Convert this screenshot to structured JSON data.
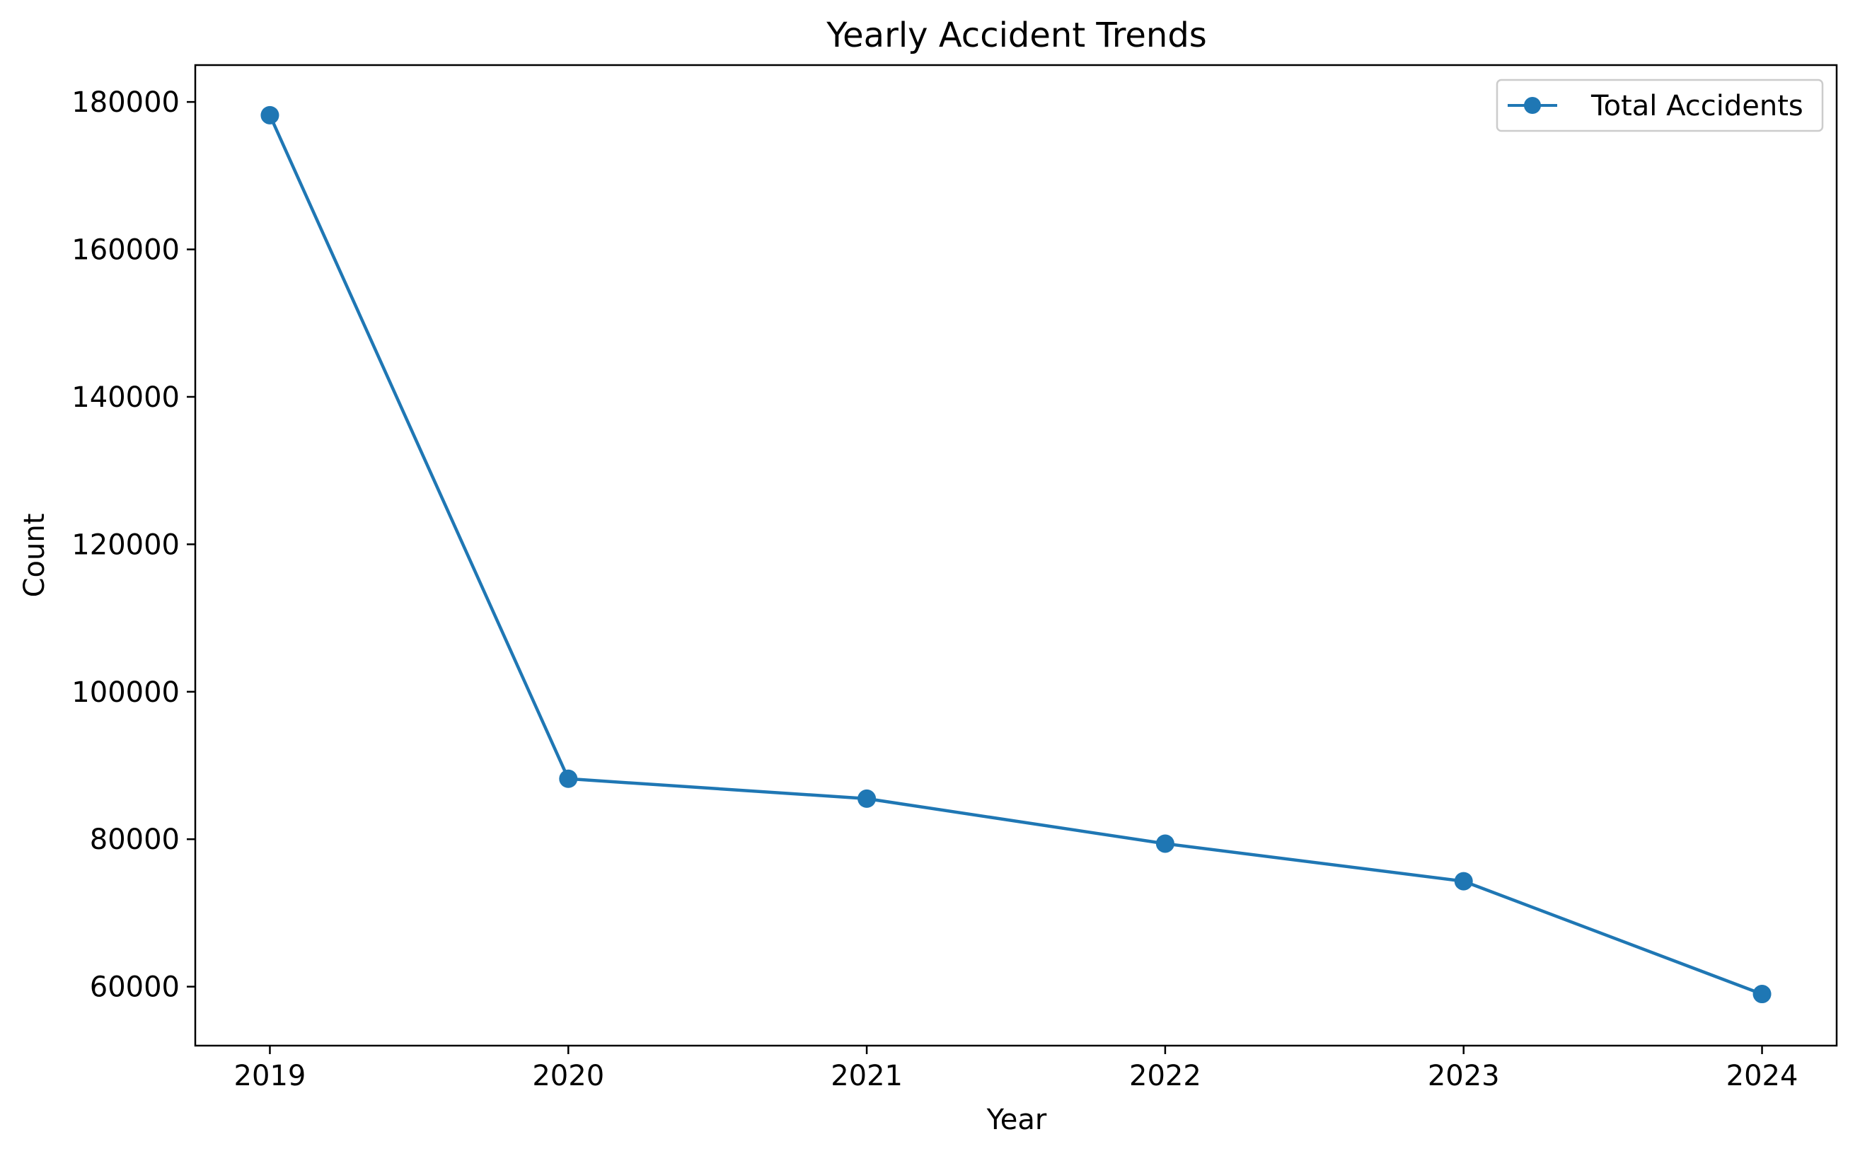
{
  "chart_data": {
    "type": "line",
    "title": "Yearly Accident Trends",
    "xlabel": "Year",
    "ylabel": "Count",
    "x": [
      2019,
      2020,
      2021,
      2022,
      2023,
      2024
    ],
    "x_tick_labels": [
      "2019",
      "2020",
      "2021",
      "2022",
      "2023",
      "2024"
    ],
    "xlim": [
      2018.75,
      2024.25
    ],
    "series": [
      {
        "name": "Total Accidents",
        "values": [
          178200,
          88200,
          85500,
          79400,
          74300,
          59000
        ],
        "color": "#1f77b4",
        "marker": "circle"
      }
    ],
    "ylim": [
      52000,
      185000
    ],
    "y_ticks": [
      60000,
      80000,
      100000,
      120000,
      140000,
      160000,
      180000
    ],
    "y_tick_labels": [
      "60000",
      "80000",
      "100000",
      "120000",
      "140000",
      "160000",
      "180000"
    ],
    "grid": false,
    "legend_position": "top-right"
  }
}
